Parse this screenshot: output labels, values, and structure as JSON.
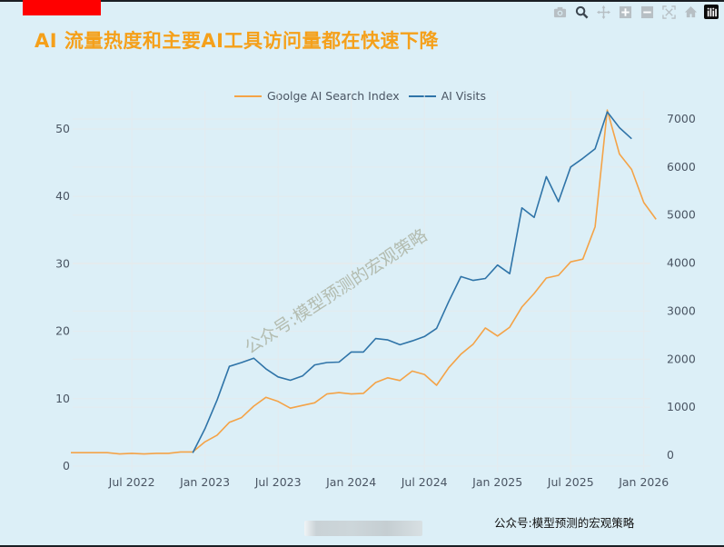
{
  "header": {
    "title": "AI 流量热度和主要AI工具访问量都在快速下降"
  },
  "modebar": {
    "buttons": [
      "camera-icon",
      "zoom-icon",
      "pan-icon",
      "zoom-in-icon",
      "zoom-out-icon",
      "autoscale-icon",
      "reset-axes-icon",
      "plotly-logo-icon"
    ]
  },
  "legend": {
    "series1": "Goolge AI Search Index",
    "series2": "AI Visits"
  },
  "watermark": "公众号:模型预测的宏观策略",
  "footer": {
    "source": "公众号:模型预测的宏观策略"
  },
  "colors": {
    "background": "#dceff7",
    "title": "#f5a01a",
    "series1": "#f4a347",
    "series2": "#2f74a8",
    "axis_text": "#4a5563",
    "grid": "#e6ecef"
  },
  "chart_data": {
    "type": "line",
    "title": "AI 流量热度和主要AI工具访问量都在快速下降",
    "xlabel": "",
    "ylabel": "",
    "y2label": "",
    "x_tick_labels": [
      "Jul 2022",
      "Jan 2023",
      "Jul 2023",
      "Jan 2024",
      "Jul 2024",
      "Jan 2025",
      "Jul 2025",
      "Jan 2026"
    ],
    "y_left_ticks": [
      0,
      10,
      20,
      30,
      40,
      50
    ],
    "y_right_ticks": [
      0,
      1000,
      2000,
      3000,
      4000,
      5000,
      6000,
      7000
    ],
    "ylim_left": [
      -2,
      54
    ],
    "ylim_right": [
      -250,
      7400
    ],
    "grid": true,
    "legend_position": "top-center",
    "x": [
      "2022-02",
      "2022-03",
      "2022-04",
      "2022-05",
      "2022-06",
      "2022-07",
      "2022-08",
      "2022-09",
      "2022-10",
      "2022-11",
      "2022-12",
      "2023-01",
      "2023-02",
      "2023-03",
      "2023-04",
      "2023-05",
      "2023-06",
      "2023-07",
      "2023-08",
      "2023-09",
      "2023-10",
      "2023-11",
      "2023-12",
      "2024-01",
      "2024-02",
      "2024-03",
      "2024-04",
      "2024-05",
      "2024-06",
      "2024-07",
      "2024-08",
      "2024-09",
      "2024-10",
      "2024-11",
      "2024-12",
      "2025-01",
      "2025-02",
      "2025-03",
      "2025-04",
      "2025-05",
      "2025-06",
      "2025-07",
      "2025-08",
      "2025-09",
      "2025-10",
      "2025-11",
      "2025-12",
      "2026-01",
      "2026-02"
    ],
    "series": [
      {
        "name": "Goolge AI Search Index",
        "axis": "left",
        "color": "#f4a347",
        "values": [
          2.0,
          2.0,
          2.0,
          2.0,
          1.8,
          1.9,
          1.8,
          1.9,
          1.9,
          2.1,
          2.1,
          3.6,
          4.6,
          6.5,
          7.2,
          8.9,
          10.2,
          9.6,
          8.6,
          9.0,
          9.4,
          10.7,
          10.9,
          10.7,
          10.8,
          12.4,
          13.1,
          12.7,
          14.1,
          13.6,
          12.0,
          14.6,
          16.6,
          18.1,
          20.5,
          19.3,
          20.6,
          23.6,
          25.6,
          27.9,
          28.3,
          30.3,
          30.7,
          35.5,
          52.8,
          46.3,
          44.0,
          39.1,
          36.6
        ]
      },
      {
        "name": "AI Visits",
        "axis": "right",
        "color": "#2f74a8",
        "values": [
          null,
          null,
          null,
          null,
          null,
          null,
          null,
          null,
          null,
          null,
          50,
          550,
          1150,
          1850,
          1930,
          2020,
          1800,
          1630,
          1560,
          1650,
          1880,
          1930,
          1940,
          2150,
          2150,
          2430,
          2400,
          2300,
          2380,
          2470,
          2640,
          3200,
          3720,
          3640,
          3680,
          3960,
          3780,
          5150,
          4950,
          5800,
          5280,
          6000,
          6180,
          6380,
          7150,
          6820,
          6590,
          null,
          null
        ]
      }
    ]
  }
}
